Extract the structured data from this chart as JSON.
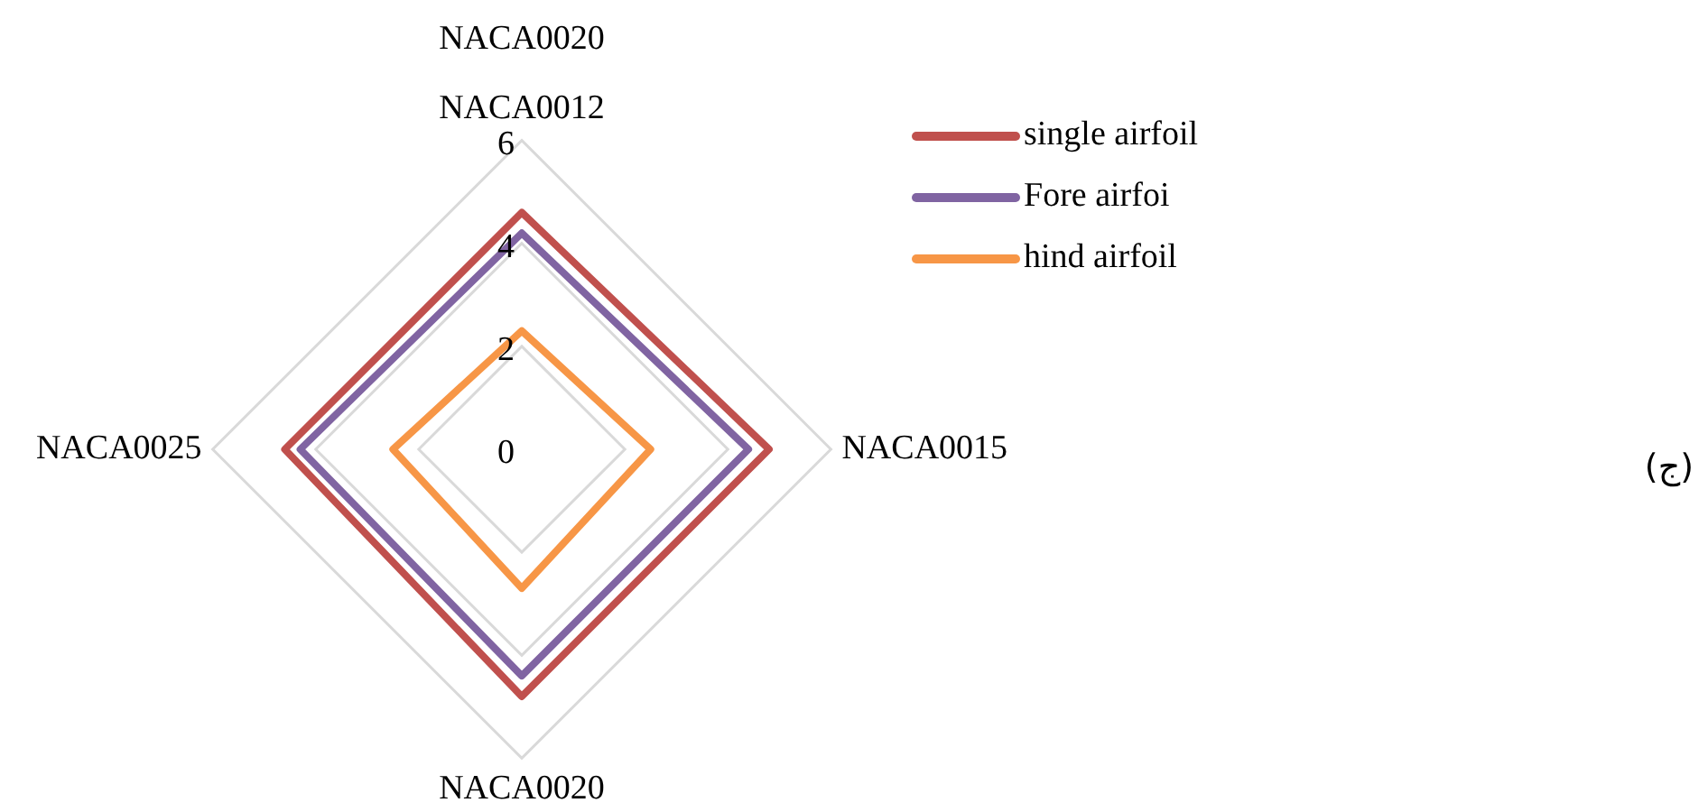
{
  "chart_data": {
    "type": "radar",
    "title": "NACA0020",
    "categories": [
      "NACA0012",
      "NACA0015",
      "NACA0020",
      "NACA0025"
    ],
    "series": [
      {
        "name": "single airfoil",
        "color": "#c0504d",
        "values": [
          4.6,
          4.8,
          4.8,
          4.6
        ]
      },
      {
        "name": "Fore airfoi",
        "color": "#8064a2",
        "values": [
          4.2,
          4.4,
          4.4,
          4.3
        ]
      },
      {
        "name": "hind airfoil",
        "color": "#f79646",
        "values": [
          2.3,
          2.5,
          2.7,
          2.5
        ]
      }
    ],
    "ylim": [
      0,
      6
    ],
    "yticks": [
      0,
      2,
      4,
      6
    ],
    "grid": true,
    "legend": "top right",
    "marker": "none",
    "annotations": [
      "(ج)"
    ]
  }
}
